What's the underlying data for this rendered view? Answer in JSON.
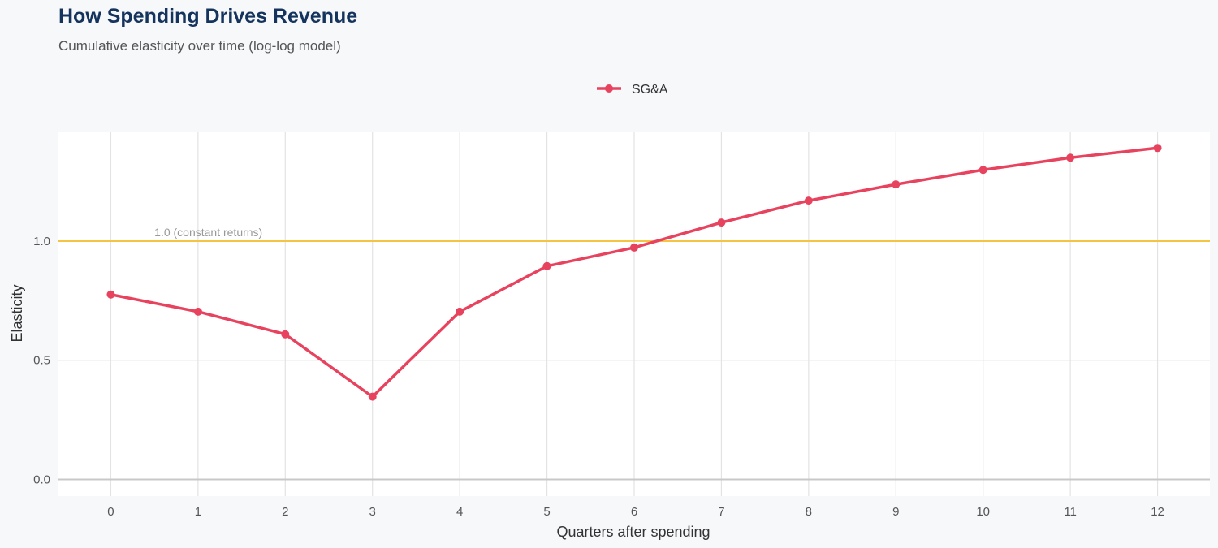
{
  "title": "How Spending Drives Revenue",
  "subtitle": "Cumulative elasticity over time (log-log model)",
  "colors": {
    "series": "#e8435e",
    "reference": "#f5c542",
    "title": "#14345e"
  },
  "chart_data": {
    "type": "line",
    "title": "How Spending Drives Revenue",
    "subtitle": "Cumulative elasticity over time (log-log model)",
    "xlabel": "Quarters after spending",
    "ylabel": "Elasticity",
    "x": [
      0,
      1,
      2,
      3,
      4,
      5,
      6,
      7,
      8,
      9,
      10,
      11,
      12
    ],
    "x_ticks": [
      "0",
      "1",
      "2",
      "3",
      "4",
      "5",
      "6",
      "7",
      "8",
      "9",
      "10",
      "11",
      "12"
    ],
    "y_ticks": [
      "0.0",
      "0.5",
      "1.0"
    ],
    "xlim": [
      -0.6,
      12.6
    ],
    "ylim": [
      -0.07,
      1.46
    ],
    "grid": true,
    "legend_position": "top",
    "series": [
      {
        "name": "SG&A",
        "values": [
          0.776,
          0.704,
          0.609,
          0.347,
          0.704,
          0.895,
          0.973,
          1.078,
          1.17,
          1.238,
          1.299,
          1.35,
          1.391
        ]
      }
    ],
    "reference_line": {
      "y": 1.0,
      "label": "1.0 (constant returns)"
    }
  }
}
